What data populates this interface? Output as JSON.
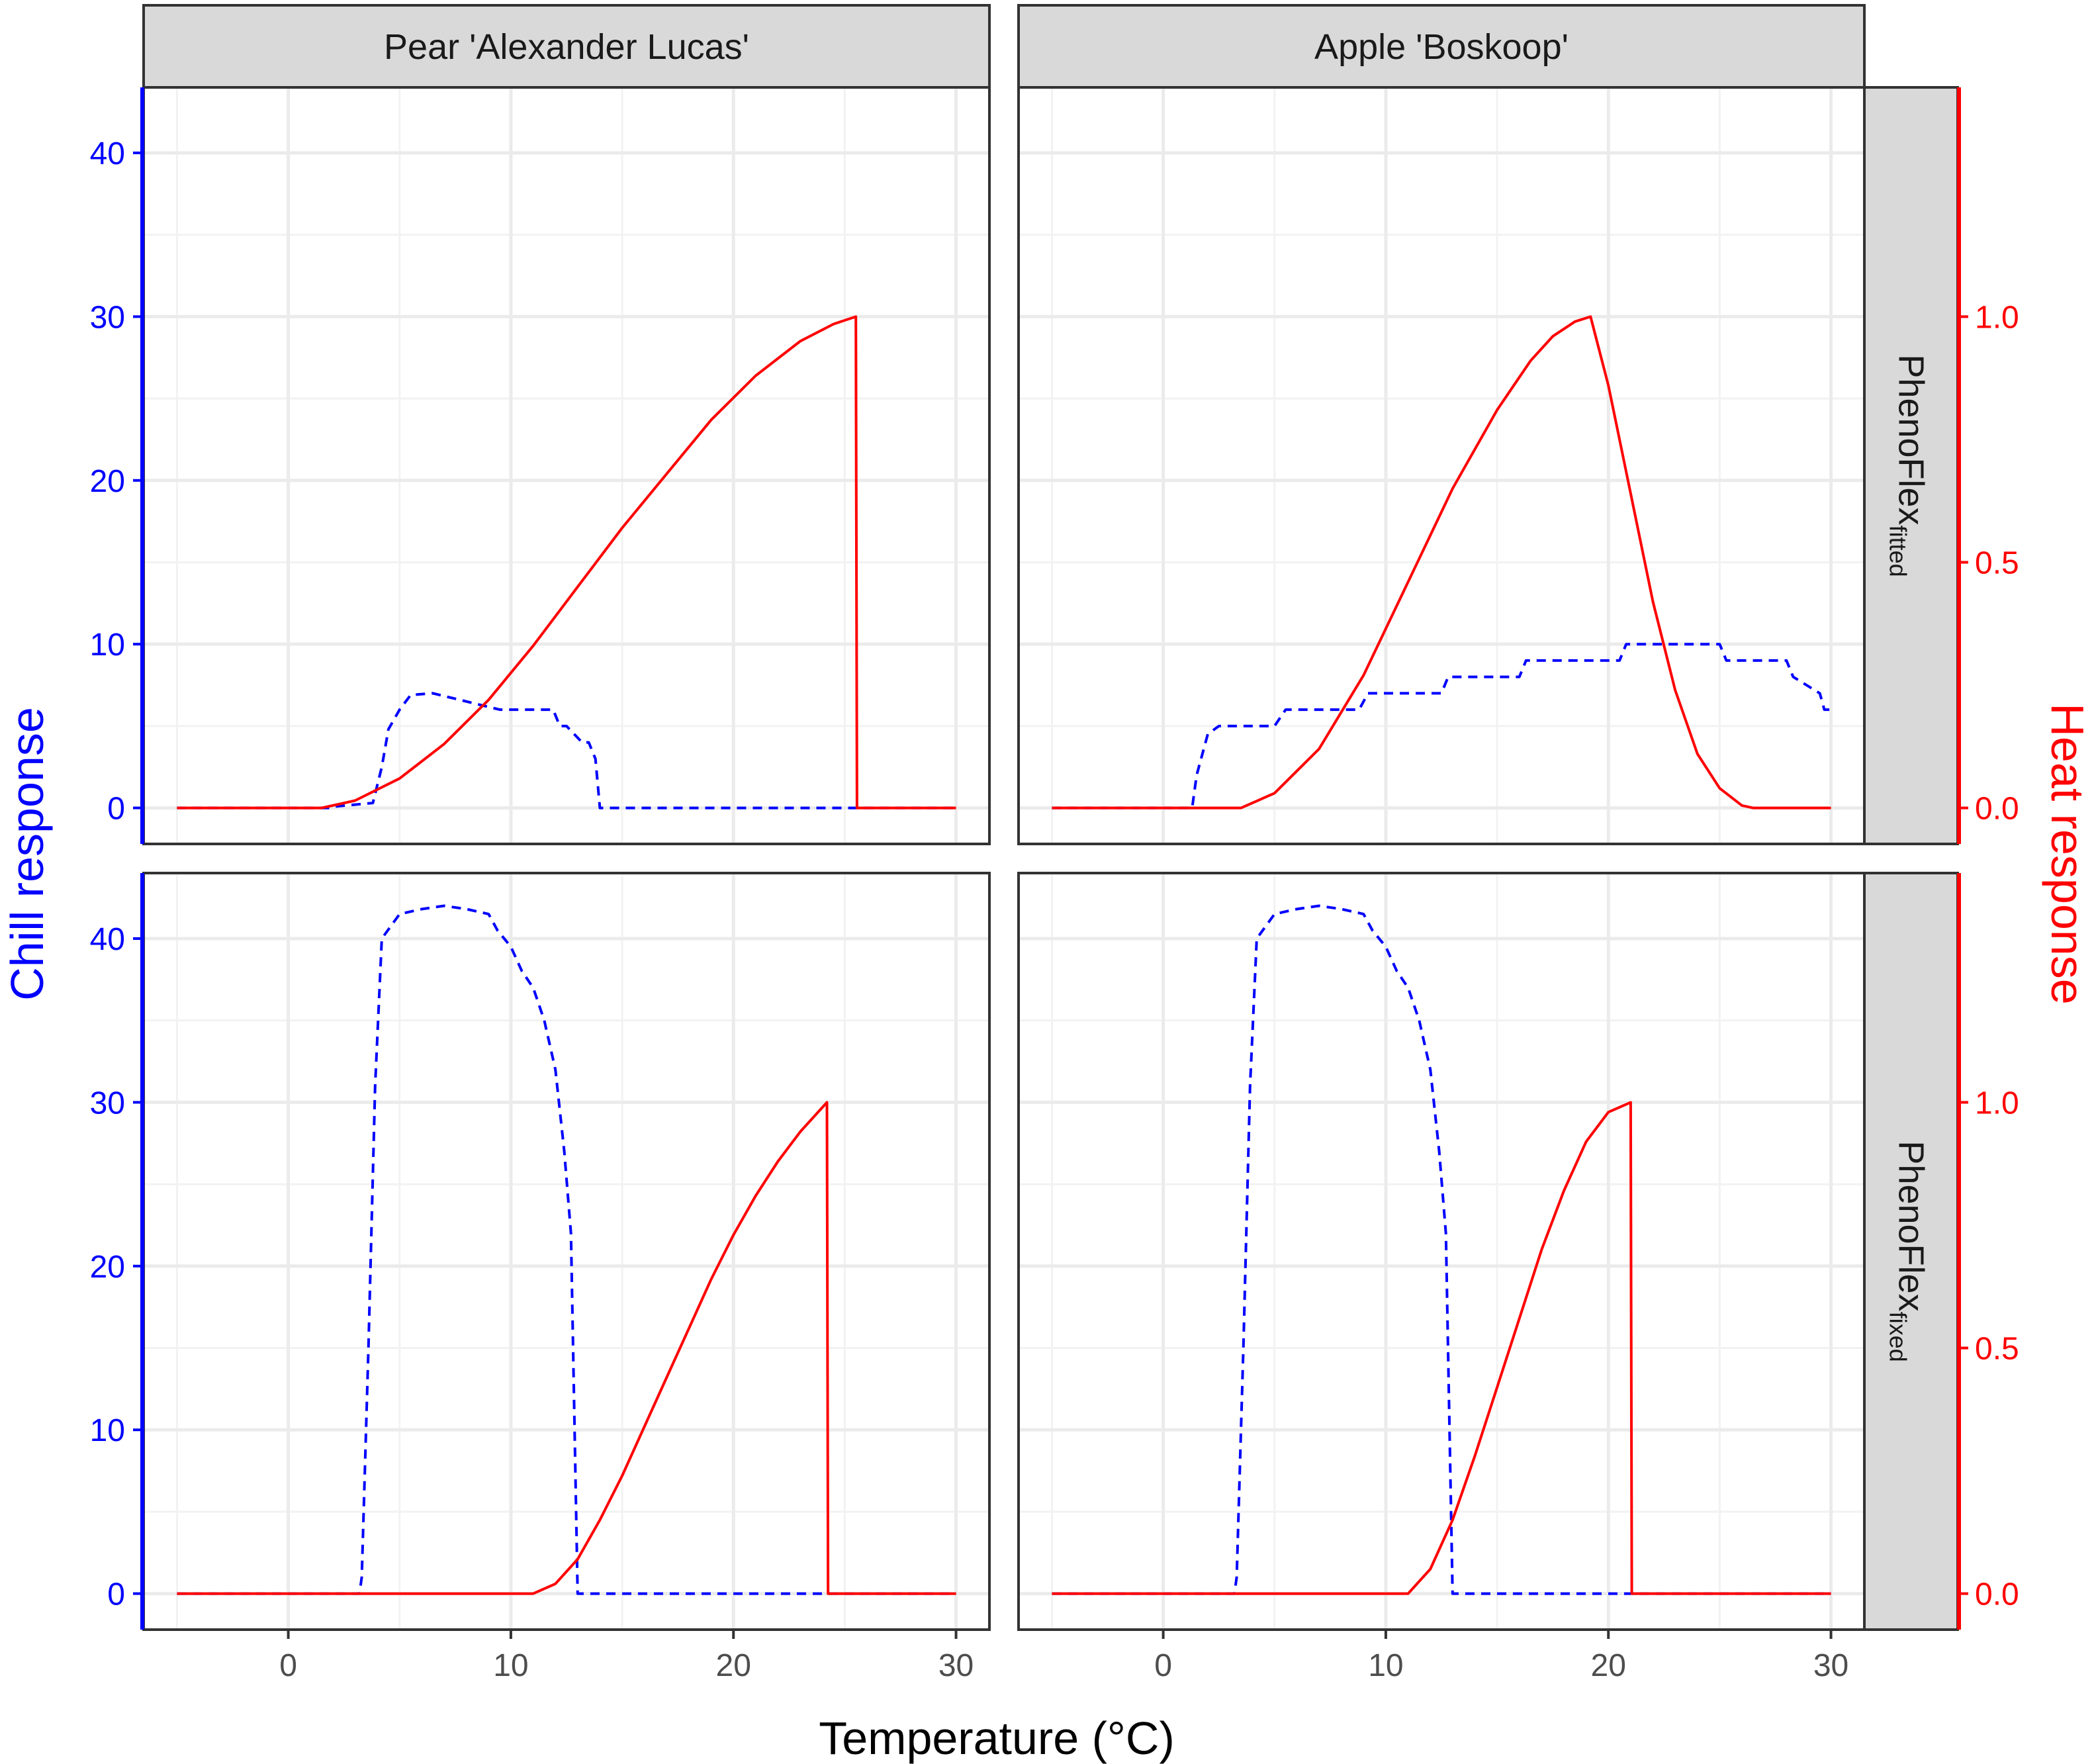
{
  "colors": {
    "chill": "#0000ff",
    "heat": "#ff0000",
    "panel_border": "#333333",
    "strip_fill": "#d9d9d9",
    "grid": "#ebebeb",
    "tick_text": "#4d4d4d"
  },
  "strips": {
    "columns": [
      "Pear 'Alexander Lucas'",
      "Apple 'Boskoop'"
    ],
    "rows": [
      {
        "main": "PhenoFlex",
        "sub": "fitted"
      },
      {
        "main": "PhenoFlex",
        "sub": "fixed"
      }
    ]
  },
  "chart_data": {
    "type": "line",
    "xlabel": "Temperature (°C)",
    "ylabel_left": "Chill response",
    "ylabel_right": "Heat response",
    "xlim": [
      -6.5,
      31.5
    ],
    "ylim_left": [
      -2.2,
      44
    ],
    "ylim_right": [
      -0.0733,
      1.4667
    ],
    "x_ticks": [
      0,
      10,
      20,
      30
    ],
    "y_left_ticks": [
      0,
      10,
      20,
      30,
      40
    ],
    "y_right_ticks": [
      "0.0",
      "0.5",
      "1.0"
    ],
    "y_right_values": [
      0,
      0.5,
      1.0
    ],
    "grid": true,
    "series_styles": {
      "chill": {
        "axis": "left",
        "line": "dashed",
        "color": "#0000ff"
      },
      "heat": {
        "axis": "right",
        "line": "solid",
        "color": "#ff0000"
      }
    },
    "panels": [
      {
        "column": "Pear 'Alexander Lucas'",
        "row": "PhenoFlex fitted",
        "chill": {
          "x": [
            -5,
            1.8,
            2.2,
            3.8,
            4.2,
            4.5,
            5.0,
            5.5,
            6.5,
            9.5,
            11.9,
            12.2,
            12.5,
            13.2,
            13.5,
            13.8,
            14.0,
            30
          ],
          "y": [
            0,
            0,
            0.1,
            0.3,
            2.5,
            4.8,
            6.0,
            6.9,
            7.0,
            6.0,
            6.0,
            5.0,
            5.0,
            4.0,
            4.0,
            3.0,
            0,
            0
          ]
        },
        "heat": {
          "x": [
            -5,
            1.5,
            3,
            5,
            7,
            9,
            11,
            13,
            15,
            17,
            19,
            21,
            23,
            24.5,
            25.5,
            25.55,
            30
          ],
          "y": [
            0,
            0,
            0.015,
            0.06,
            0.13,
            0.22,
            0.33,
            0.45,
            0.57,
            0.68,
            0.79,
            0.88,
            0.95,
            0.985,
            1.0,
            0,
            0
          ]
        }
      },
      {
        "column": "Apple 'Boskoop'",
        "row": "PhenoFlex fitted",
        "chill": {
          "x": [
            -5,
            1.3,
            1.5,
            2.0,
            2.5,
            5.0,
            5.5,
            8.8,
            9.2,
            12.5,
            12.8,
            16.0,
            16.3,
            20.5,
            20.8,
            25.0,
            25.3,
            28.0,
            28.3,
            29.5,
            29.7,
            30
          ],
          "y": [
            0,
            0,
            2.0,
            4.5,
            5.0,
            5.0,
            6.0,
            6.0,
            7.0,
            7.0,
            8.0,
            8.0,
            9.0,
            9.0,
            10.0,
            10.0,
            9.0,
            9.0,
            8.0,
            7.0,
            6.0,
            6.0
          ]
        },
        "heat": {
          "x": [
            -5,
            3.5,
            5,
            7,
            9,
            11,
            13,
            15,
            16.5,
            17.5,
            18.5,
            19.2,
            20,
            21,
            22,
            23,
            24,
            25,
            26,
            26.5,
            30
          ],
          "y": [
            0,
            0,
            0.03,
            0.12,
            0.27,
            0.46,
            0.65,
            0.81,
            0.91,
            0.96,
            0.99,
            1.0,
            0.86,
            0.64,
            0.42,
            0.24,
            0.11,
            0.04,
            0.005,
            0,
            0
          ]
        }
      },
      {
        "column": "Pear 'Alexander Lucas'",
        "row": "PhenoFlex fixed",
        "chill": {
          "x": [
            -5,
            3.2,
            3.3,
            3.6,
            3.9,
            4.2,
            5.0,
            6.0,
            7.0,
            8.0,
            9.0,
            9.4,
            10.0,
            10.5,
            11.0,
            11.5,
            12.0,
            12.4,
            12.7,
            13.0,
            30
          ],
          "y": [
            0,
            0,
            1.0,
            15.0,
            31.0,
            40.0,
            41.5,
            41.8,
            42.0,
            41.8,
            41.5,
            40.5,
            39.5,
            38.0,
            37.0,
            35.0,
            32.0,
            27.0,
            22.0,
            0,
            0
          ]
        },
        "heat": {
          "x": [
            -5,
            11,
            12,
            13,
            14,
            15,
            16,
            17,
            18,
            19,
            20,
            21,
            22,
            23,
            24.2,
            24.25,
            30
          ],
          "y": [
            0,
            0,
            0.02,
            0.07,
            0.15,
            0.24,
            0.34,
            0.44,
            0.54,
            0.64,
            0.73,
            0.81,
            0.88,
            0.94,
            1.0,
            0,
            0
          ]
        }
      },
      {
        "column": "Apple 'Boskoop'",
        "row": "PhenoFlex fixed",
        "chill": {
          "x": [
            -5,
            3.2,
            3.3,
            3.6,
            3.9,
            4.2,
            5.0,
            6.0,
            7.0,
            8.0,
            9.0,
            9.4,
            10.0,
            10.5,
            11.0,
            11.5,
            12.0,
            12.4,
            12.7,
            13.0,
            30
          ],
          "y": [
            0,
            0,
            1.0,
            15.0,
            31.0,
            40.0,
            41.5,
            41.8,
            42.0,
            41.8,
            41.5,
            40.5,
            39.5,
            38.0,
            37.0,
            35.0,
            32.0,
            27.0,
            22.0,
            0,
            0
          ]
        },
        "heat": {
          "x": [
            -5,
            11,
            12,
            13,
            14,
            15,
            16,
            17,
            18,
            19,
            20,
            21,
            21.05,
            30
          ],
          "y": [
            0,
            0,
            0.05,
            0.15,
            0.28,
            0.42,
            0.56,
            0.7,
            0.82,
            0.92,
            0.98,
            1.0,
            0,
            0
          ]
        }
      }
    ]
  }
}
